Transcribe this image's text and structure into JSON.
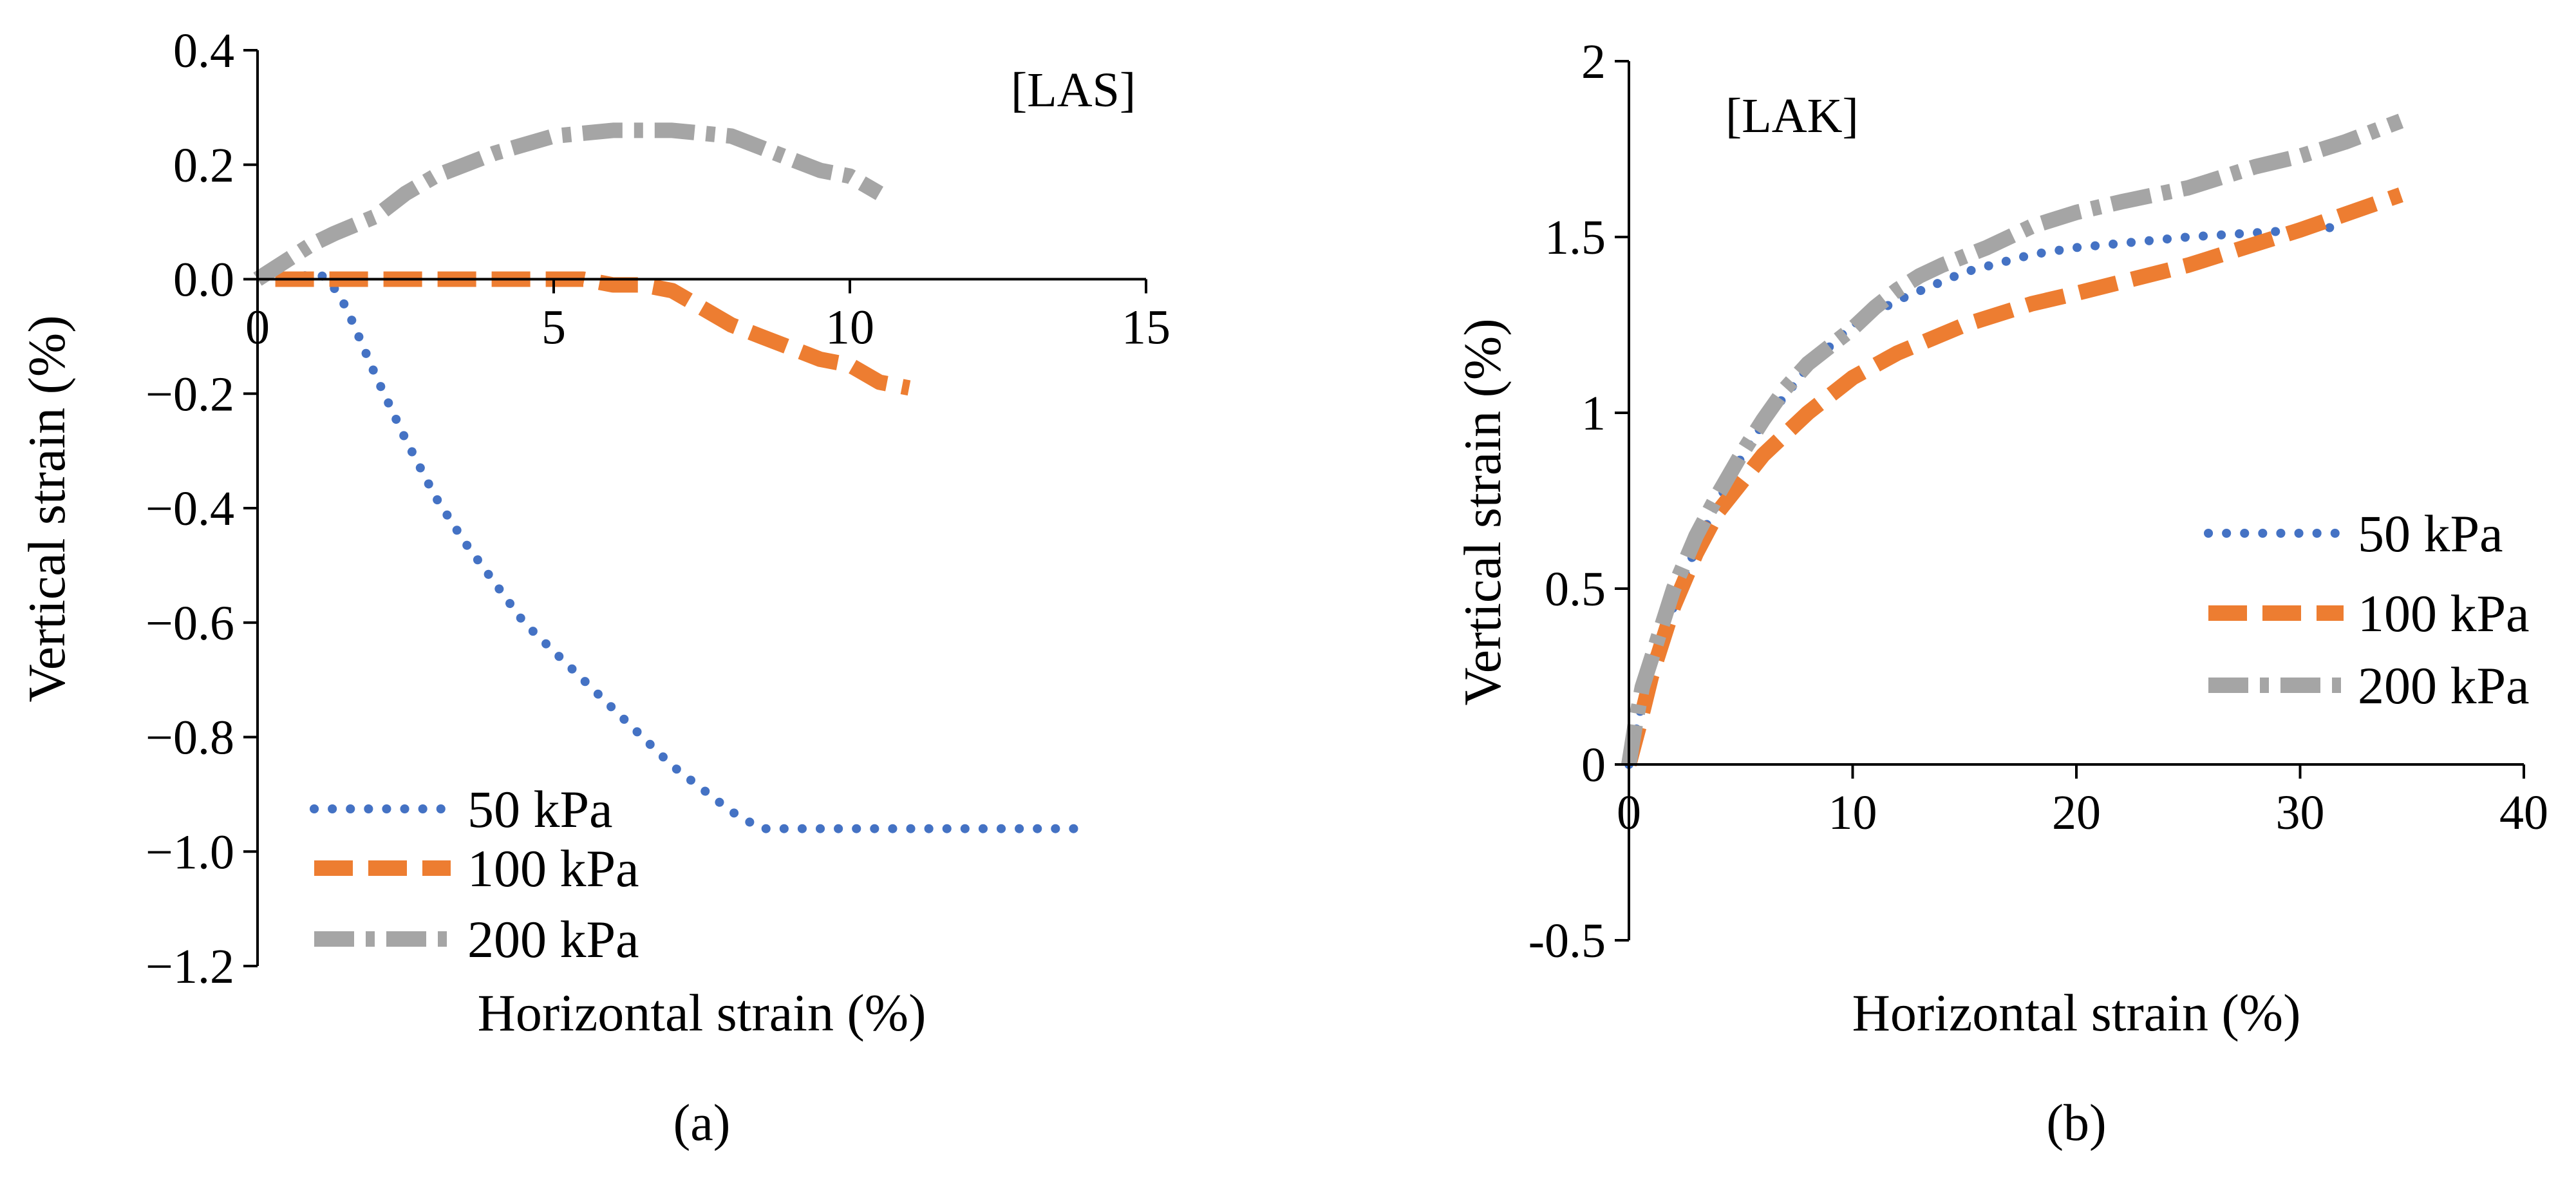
{
  "chart_data": [
    {
      "type": "line",
      "panel": "(a)",
      "tag": "[LAS]",
      "xlabel": "Horizontal strain (%)",
      "ylabel": "Vertical strain (%)",
      "xlim": [
        0,
        15
      ],
      "ylim": [
        -1.2,
        0.4
      ],
      "x_ticks": [
        0,
        5,
        10,
        15
      ],
      "y_ticks": [
        0.4,
        0.2,
        0.0,
        -0.2,
        -0.4,
        -0.6,
        -0.8,
        -1.0,
        -1.2
      ],
      "x_tick_labels": [
        "0",
        "5",
        "10",
        "15"
      ],
      "y_tick_labels": [
        "0.4",
        "0.2",
        "0.0",
        "−0.2",
        "−0.4",
        "−0.6",
        "−0.8",
        "−1.0",
        "−1.2"
      ],
      "grid": false,
      "legend_position": "bottom-left",
      "series": [
        {
          "name": "50 kPa",
          "color": "#4472C4",
          "style": "dotted",
          "x": [
            0.5,
            1.0,
            1.2,
            1.5,
            2.0,
            2.5,
            3.0,
            3.5,
            4.0,
            4.5,
            5.0,
            5.5,
            6.0,
            6.5,
            7.0,
            7.5,
            8.0,
            8.5,
            9.0,
            10.0,
            11.0,
            12.0,
            13.0,
            13.8
          ],
          "y": [
            0.0,
            0.01,
            0.0,
            -0.05,
            -0.17,
            -0.28,
            -0.38,
            -0.46,
            -0.53,
            -0.6,
            -0.65,
            -0.7,
            -0.75,
            -0.8,
            -0.85,
            -0.89,
            -0.93,
            -0.96,
            -0.96,
            -0.96,
            -0.96,
            -0.96,
            -0.96,
            -0.96
          ]
        },
        {
          "name": "100 kPa",
          "color": "#ED7D31",
          "style": "dashed",
          "x": [
            0.3,
            1.0,
            2.0,
            3.0,
            4.0,
            5.0,
            5.5,
            6.0,
            6.5,
            7.0,
            7.5,
            8.0,
            8.5,
            9.0,
            9.5,
            10.0,
            10.5,
            11.0
          ],
          "y": [
            0.0,
            0.0,
            0.0,
            0.0,
            0.0,
            0.0,
            0.0,
            -0.01,
            -0.01,
            -0.02,
            -0.05,
            -0.08,
            -0.1,
            -0.12,
            -0.14,
            -0.15,
            -0.18,
            -0.19
          ]
        },
        {
          "name": "200 kPa",
          "color": "#A5A5A5",
          "style": "dash-dot",
          "x": [
            0.0,
            0.3,
            0.6,
            0.9,
            1.3,
            2.0,
            2.5,
            3.0,
            3.5,
            4.0,
            5.0,
            6.0,
            7.0,
            8.0,
            8.5,
            9.0,
            9.5,
            10.0,
            10.5
          ],
          "y": [
            0.0,
            0.02,
            0.04,
            0.06,
            0.08,
            0.11,
            0.15,
            0.18,
            0.2,
            0.22,
            0.25,
            0.26,
            0.26,
            0.25,
            0.23,
            0.21,
            0.19,
            0.18,
            0.15
          ]
        }
      ]
    },
    {
      "type": "line",
      "panel": "(b)",
      "tag": "[LAK]",
      "xlabel": "Horizontal strain (%)",
      "ylabel": "Vertical strain (%)",
      "xlim": [
        0,
        40
      ],
      "ylim": [
        -0.5,
        2
      ],
      "x_ticks": [
        0,
        10,
        20,
        30,
        40
      ],
      "y_ticks": [
        2,
        1.5,
        1,
        0.5,
        0,
        -0.5
      ],
      "x_tick_labels": [
        "0",
        "10",
        "20",
        "30",
        "40"
      ],
      "y_tick_labels": [
        "2",
        "1.5",
        "1",
        "0.5",
        "0",
        "-0.5"
      ],
      "grid": false,
      "legend_position": "right",
      "series": [
        {
          "name": "50 kPa",
          "color": "#4472C4",
          "style": "dotted",
          "x": [
            0,
            0.5,
            1,
            2,
            3,
            4,
            5,
            6,
            8,
            10,
            12,
            15,
            18,
            20,
            25,
            30,
            32
          ],
          "y": [
            0,
            0.15,
            0.3,
            0.45,
            0.62,
            0.75,
            0.87,
            0.97,
            1.13,
            1.25,
            1.32,
            1.4,
            1.45,
            1.47,
            1.5,
            1.52,
            1.53
          ]
        },
        {
          "name": "100 kPa",
          "color": "#ED7D31",
          "style": "dashed",
          "x": [
            0,
            0.5,
            1,
            2,
            3,
            4,
            5,
            6,
            8,
            10,
            12,
            15,
            18,
            20,
            25,
            30,
            34.5
          ],
          "y": [
            0,
            0.12,
            0.25,
            0.45,
            0.6,
            0.72,
            0.8,
            0.88,
            1.0,
            1.1,
            1.17,
            1.25,
            1.31,
            1.34,
            1.42,
            1.52,
            1.62
          ]
        },
        {
          "name": "200 kPa",
          "color": "#A5A5A5",
          "style": "dash-dot",
          "x": [
            0,
            0.3,
            0.6,
            1,
            2,
            3,
            4,
            5,
            6,
            7,
            8,
            9,
            10,
            11,
            12,
            13,
            14,
            16,
            18,
            20,
            22,
            25,
            28,
            30,
            32,
            34.5
          ],
          "y": [
            0,
            0.12,
            0.22,
            0.3,
            0.5,
            0.65,
            0.77,
            0.88,
            0.98,
            1.07,
            1.14,
            1.19,
            1.24,
            1.3,
            1.35,
            1.39,
            1.42,
            1.47,
            1.53,
            1.57,
            1.6,
            1.64,
            1.7,
            1.73,
            1.77,
            1.83
          ]
        }
      ]
    }
  ]
}
